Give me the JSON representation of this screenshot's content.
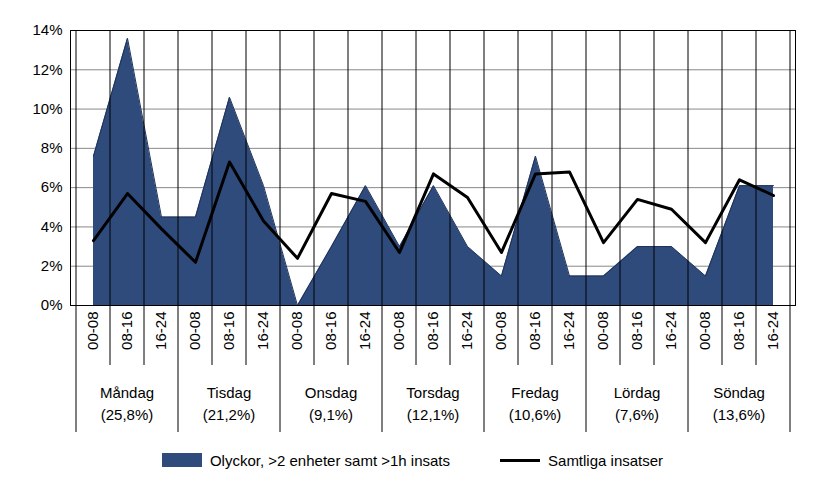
{
  "chart_data": {
    "type": "line",
    "categories": [
      "00-08",
      "08-16",
      "16-24",
      "00-08",
      "08-16",
      "16-24",
      "00-08",
      "08-16",
      "16-24",
      "00-08",
      "08-16",
      "16-24",
      "00-08",
      "08-16",
      "16-24",
      "00-08",
      "08-16",
      "16-24",
      "00-08",
      "08-16",
      "16-24"
    ],
    "groups": [
      {
        "name": "Måndag",
        "value": 25.8,
        "value_label": "(25,8%)"
      },
      {
        "name": "Tisdag",
        "value": 21.2,
        "value_label": "(21,2%)"
      },
      {
        "name": "Onsdag",
        "value": 9.1,
        "value_label": "(9,1%)"
      },
      {
        "name": "Torsdag",
        "value": 12.1,
        "value_label": "(12,1%)"
      },
      {
        "name": "Fredag",
        "value": 10.6,
        "value_label": "(10,6%)"
      },
      {
        "name": "Lördag",
        "value": 7.6,
        "value_label": "(7,6%)"
      },
      {
        "name": "Söndag",
        "value": 13.6,
        "value_label": "(13,6%)"
      }
    ],
    "series": [
      {
        "name": "Olyckor, >2 enheter samt >1h insats",
        "type": "area",
        "color": "#2f4b7c",
        "values": [
          7.6,
          13.6,
          4.5,
          4.5,
          10.6,
          6.1,
          0,
          3.0,
          6.1,
          3.0,
          6.1,
          3.0,
          1.5,
          7.6,
          1.5,
          1.5,
          3.0,
          3.0,
          1.5,
          6.1,
          6.1
        ]
      },
      {
        "name": "Samtliga insatser",
        "type": "line",
        "color": "#000000",
        "values": [
          3.3,
          5.7,
          3.9,
          2.2,
          7.3,
          4.3,
          2.4,
          5.7,
          5.3,
          2.7,
          6.7,
          5.5,
          2.7,
          6.7,
          6.8,
          3.2,
          5.4,
          4.9,
          3.2,
          6.4,
          5.6
        ]
      }
    ],
    "ylim": [
      0,
      14
    ],
    "yticks": [
      {
        "value": 0,
        "label": "0%"
      },
      {
        "value": 2,
        "label": "2%"
      },
      {
        "value": 4,
        "label": "4%"
      },
      {
        "value": 6,
        "label": "6%"
      },
      {
        "value": 8,
        "label": "8%"
      },
      {
        "value": 10,
        "label": "10%"
      },
      {
        "value": 12,
        "label": "12%"
      },
      {
        "value": 14,
        "label": "14%"
      }
    ],
    "grid": true,
    "legend": "bottom"
  }
}
